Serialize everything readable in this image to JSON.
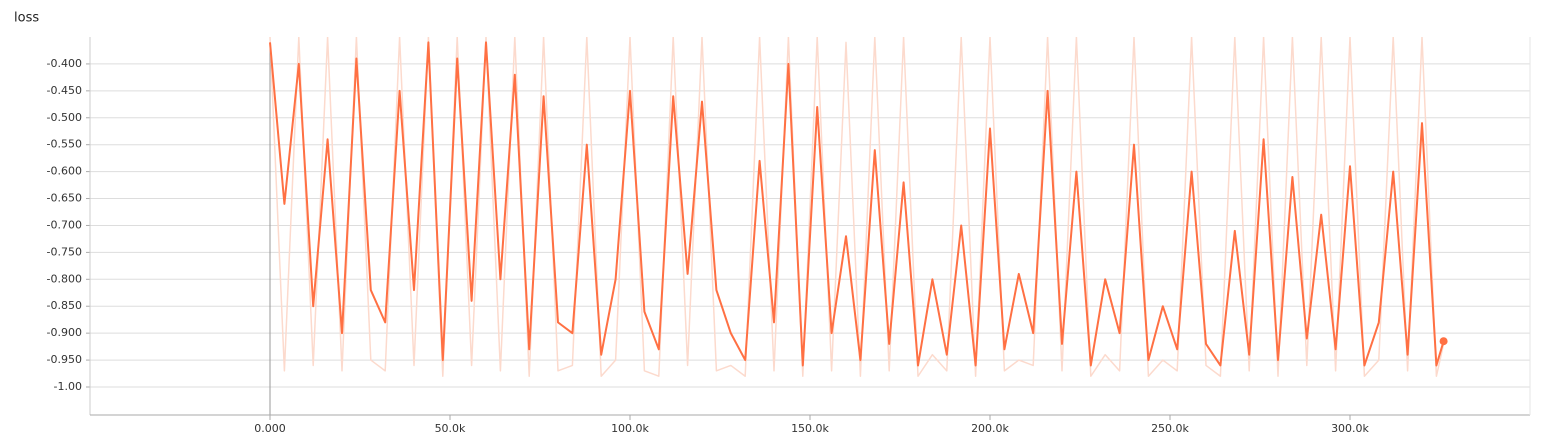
{
  "chart_data": {
    "type": "line",
    "title": "loss",
    "x": [
      0,
      4000,
      8000,
      12000,
      16000,
      20000,
      24000,
      28000,
      32000,
      36000,
      40000,
      44000,
      48000,
      52000,
      56000,
      60000,
      64000,
      68000,
      72000,
      76000,
      80000,
      84000,
      88000,
      92000,
      96000,
      100000,
      104000,
      108000,
      112000,
      116000,
      120000,
      124000,
      128000,
      132000,
      136000,
      140000,
      144000,
      148000,
      152000,
      156000,
      160000,
      164000,
      168000,
      172000,
      176000,
      180000,
      184000,
      188000,
      192000,
      196000,
      200000,
      204000,
      208000,
      212000,
      216000,
      220000,
      224000,
      228000,
      232000,
      236000,
      240000,
      244000,
      248000,
      252000,
      256000,
      260000,
      264000,
      268000,
      272000,
      276000,
      280000,
      284000,
      288000,
      292000,
      296000,
      300000,
      304000,
      308000,
      312000,
      316000,
      320000,
      324000,
      326000
    ],
    "series": [
      {
        "color": "#ff7043",
        "values": [
          -0.36,
          -0.66,
          -0.4,
          -0.85,
          -0.54,
          -0.9,
          -0.39,
          -0.82,
          -0.88,
          -0.45,
          -0.82,
          -0.36,
          -0.95,
          -0.39,
          -0.84,
          -0.36,
          -0.8,
          -0.42,
          -0.93,
          -0.46,
          -0.88,
          -0.9,
          -0.55,
          -0.94,
          -0.8,
          -0.45,
          -0.86,
          -0.93,
          -0.46,
          -0.79,
          -0.47,
          -0.82,
          -0.9,
          -0.95,
          -0.58,
          -0.88,
          -0.4,
          -0.96,
          -0.48,
          -0.9,
          -0.72,
          -0.95,
          -0.56,
          -0.92,
          -0.62,
          -0.96,
          -0.8,
          -0.94,
          -0.7,
          -0.96,
          -0.52,
          -0.93,
          -0.79,
          -0.9,
          -0.45,
          -0.92,
          -0.6,
          -0.96,
          -0.8,
          -0.9,
          -0.55,
          -0.95,
          -0.85,
          -0.93,
          -0.6,
          -0.92,
          -0.96,
          -0.71,
          -0.94,
          -0.54,
          -0.95,
          -0.61,
          -0.91,
          -0.68,
          -0.93,
          -0.59,
          -0.96,
          -0.88,
          -0.6,
          -0.94,
          -0.51,
          -0.96,
          -0.915
        ]
      },
      {
        "color": "#fcdacd",
        "values": [
          -0.35,
          -0.97,
          -0.35,
          -0.96,
          -0.35,
          -0.97,
          -0.35,
          -0.95,
          -0.97,
          -0.35,
          -0.96,
          -0.35,
          -0.98,
          -0.35,
          -0.96,
          -0.35,
          -0.97,
          -0.35,
          -0.98,
          -0.35,
          -0.97,
          -0.96,
          -0.35,
          -0.98,
          -0.95,
          -0.35,
          -0.97,
          -0.98,
          -0.35,
          -0.96,
          -0.35,
          -0.97,
          -0.96,
          -0.98,
          -0.35,
          -0.97,
          -0.35,
          -0.98,
          -0.35,
          -0.97,
          -0.36,
          -0.98,
          -0.35,
          -0.97,
          -0.35,
          -0.98,
          -0.94,
          -0.97,
          -0.35,
          -0.98,
          -0.35,
          -0.97,
          -0.95,
          -0.96,
          -0.35,
          -0.97,
          -0.35,
          -0.98,
          -0.94,
          -0.97,
          -0.35,
          -0.98,
          -0.95,
          -0.97,
          -0.35,
          -0.96,
          -0.98,
          -0.35,
          -0.97,
          -0.35,
          -0.98,
          -0.35,
          -0.96,
          -0.35,
          -0.97,
          -0.35,
          -0.98,
          -0.95,
          -0.35,
          -0.97,
          -0.35,
          -0.98,
          -0.92
        ]
      }
    ],
    "xlim": [
      -50000,
      350000
    ],
    "xticks": [
      {
        "value": 0,
        "label": "0.000"
      },
      {
        "value": 50000,
        "label": "50.0k"
      },
      {
        "value": 100000,
        "label": "100.0k"
      },
      {
        "value": 150000,
        "label": "150.0k"
      },
      {
        "value": 200000,
        "label": "200.0k"
      },
      {
        "value": 250000,
        "label": "250.0k"
      },
      {
        "value": 300000,
        "label": "300.0k"
      }
    ],
    "ylim": [
      -1.052,
      -0.35
    ],
    "yticks": [
      {
        "value": -0.4,
        "label": "-0.400"
      },
      {
        "value": -0.45,
        "label": "-0.450"
      },
      {
        "value": -0.5,
        "label": "-0.500"
      },
      {
        "value": -0.55,
        "label": "-0.550"
      },
      {
        "value": -0.6,
        "label": "-0.600"
      },
      {
        "value": -0.65,
        "label": "-0.650"
      },
      {
        "value": -0.7,
        "label": "-0.700"
      },
      {
        "value": -0.75,
        "label": "-0.750"
      },
      {
        "value": -0.8,
        "label": "-0.800"
      },
      {
        "value": -0.85,
        "label": "-0.850"
      },
      {
        "value": -0.9,
        "label": "-0.900"
      },
      {
        "value": -0.95,
        "label": "-0.950"
      },
      {
        "value": -1.0,
        "label": "-1.00"
      }
    ],
    "grid": true
  }
}
